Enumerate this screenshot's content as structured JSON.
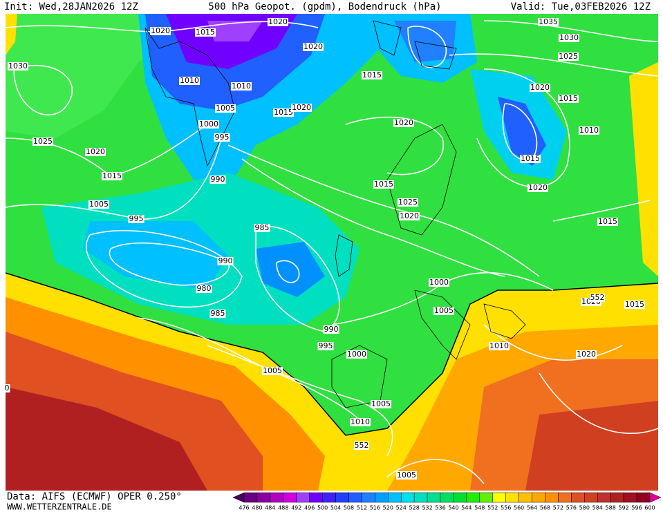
{
  "header": {
    "init": "Init: Wed,28JAN2026 12Z",
    "title": "500 hPa Geopot. (gpdm), Bodendruck (hPa)",
    "valid": "Valid: Tue,03FEB2026 12Z"
  },
  "isobar_labels": [
    "1020",
    "1015",
    "1020",
    "1020",
    "1030",
    "1010",
    "1010",
    "1015",
    "1005",
    "1015",
    "1020",
    "1000",
    "995",
    "1025",
    "1020",
    "1015",
    "990",
    "1005",
    "995",
    "985",
    "990",
    "980",
    "985",
    "1020",
    "1015",
    "1025",
    "1020",
    "1035",
    "1030",
    "1025",
    "1020",
    "1015",
    "1010",
    "1015",
    "1020",
    "1015",
    "1000",
    "1005",
    "1020",
    "1015",
    "1010",
    "1020",
    "990",
    "995",
    "1000",
    "1005",
    "1005",
    "1010",
    "1005",
    "0"
  ],
  "contour_labels": [
    "552",
    "552"
  ],
  "footer": {
    "source": "Data: AIFS (ECMWF) OPER 0.250°",
    "url": "WWW.WETTERZENTRALE.DE"
  },
  "colorbar": {
    "ticks": [
      476,
      480,
      484,
      488,
      492,
      496,
      500,
      504,
      508,
      512,
      516,
      520,
      524,
      528,
      532,
      536,
      540,
      544,
      548,
      552,
      556,
      560,
      564,
      568,
      572,
      576,
      580,
      584,
      588,
      592,
      596,
      600
    ],
    "colors": [
      "#4b0063",
      "#6a0080",
      "#8b00a0",
      "#b000c0",
      "#d000e0",
      "#a040ff",
      "#7000ff",
      "#4020ff",
      "#2040ff",
      "#2060ff",
      "#2080ff",
      "#00a0ff",
      "#00c0ff",
      "#00e0f0",
      "#00e0c0",
      "#00e090",
      "#00e060",
      "#00e030",
      "#20f000",
      "#60f000",
      "#ffff00",
      "#ffe000",
      "#ffc000",
      "#ffa800",
      "#ff9000",
      "#f07020",
      "#e05020",
      "#d04020",
      "#c03030",
      "#b02020",
      "#a01020",
      "#900020",
      "#e000a0"
    ]
  }
}
